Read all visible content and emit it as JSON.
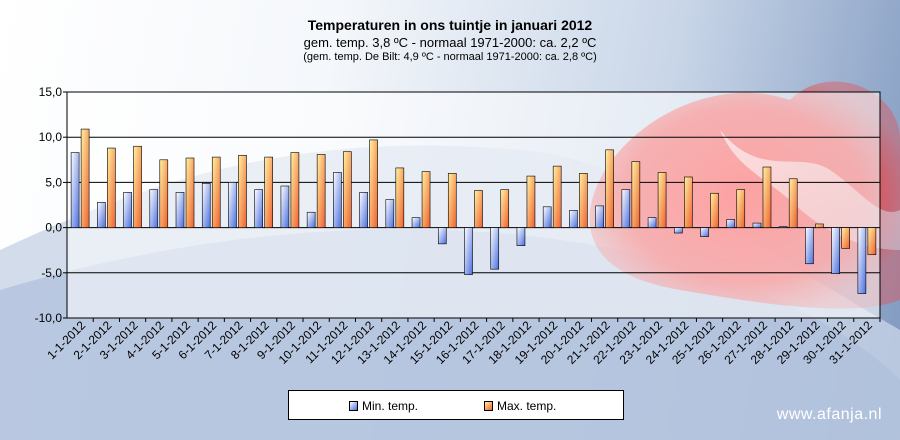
{
  "header": {
    "title": "Temperaturen  in ons tuintje in januari 2012",
    "subtitle": "gem.  temp. 3,8 ºC - normaal  1971-2000:  ca. 2,2 ºC",
    "subtitle2": "(gem. temp. De Bilt:  4,9 ºC - normaal 1971-2000: ca. 2,8 ºC)"
  },
  "watermark": "www.afanja.nl",
  "colors": {
    "min_bar": "#4a6fe0",
    "max_bar": "#f06030",
    "plot_background": "#ffffff"
  },
  "chart_data": {
    "type": "bar",
    "title": "Temperaturen  in ons tuintje in januari 2012",
    "categories": [
      "1-1-2012",
      "2-1-2012",
      "3-1-2012",
      "4-1-2012",
      "5-1-2012",
      "6-1-2012",
      "7-1-2012",
      "8-1-2012",
      "9-1-2012",
      "10-1-2012",
      "11-1-2012",
      "12-1-2012",
      "13-1-2012",
      "14-1-2012",
      "15-1-2012",
      "16-1-2012",
      "17-1-2012",
      "18-1-2012",
      "19-1-2012",
      "20-1-2012",
      "21-1-2012",
      "22-1-2012",
      "23-1-2012",
      "24-1-2012",
      "25-1-2012",
      "26-1-2012",
      "27-1-2012",
      "28-1-2012",
      "29-1-2012",
      "30-1-2012",
      "31-1-2012"
    ],
    "series": [
      {
        "name": "Min. temp.",
        "values": [
          8.3,
          2.8,
          3.9,
          4.2,
          3.9,
          4.9,
          5.0,
          4.2,
          4.6,
          1.7,
          6.1,
          3.9,
          3.1,
          1.1,
          -1.8,
          -5.2,
          -4.6,
          -2.0,
          2.3,
          1.9,
          2.4,
          4.2,
          1.1,
          -0.6,
          -1.0,
          0.9,
          0.5,
          0.1,
          -4.0,
          -5.1,
          -7.3
        ]
      },
      {
        "name": "Max. temp.",
        "values": [
          10.9,
          8.8,
          9.0,
          7.5,
          7.7,
          7.8,
          8.0,
          7.8,
          8.3,
          8.1,
          8.4,
          9.7,
          6.6,
          6.2,
          6.0,
          4.1,
          4.2,
          5.7,
          6.8,
          6.0,
          8.6,
          7.3,
          6.1,
          5.6,
          3.8,
          4.2,
          6.7,
          5.4,
          0.4,
          -2.3,
          -3.0
        ]
      }
    ],
    "ylim": [
      -10,
      15
    ],
    "yticks": [
      "-10,0",
      "-5,0",
      "0,0",
      "5,0",
      "10,0",
      "15,0"
    ],
    "ytick_values": [
      -10,
      -5,
      0,
      5,
      10,
      15
    ],
    "grid": true,
    "legend": "bottom",
    "xlabel": "",
    "ylabel": ""
  }
}
